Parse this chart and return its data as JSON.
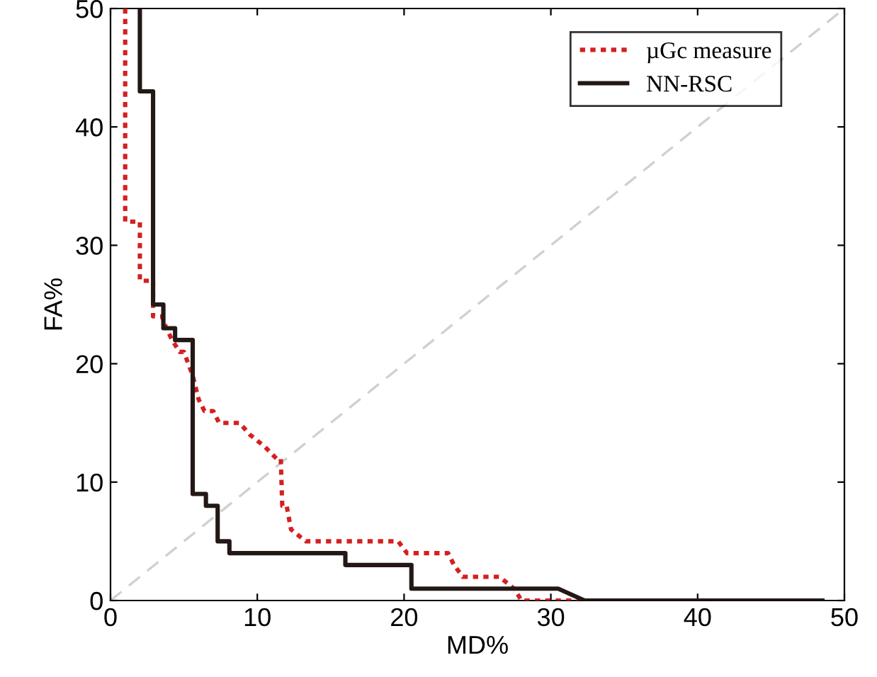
{
  "chart_data": {
    "type": "line",
    "xlabel": "MD%",
    "ylabel": "FA%",
    "xlim": [
      0,
      50
    ],
    "ylim": [
      0,
      50
    ],
    "xticks": [
      0,
      10,
      20,
      30,
      40,
      50
    ],
    "yticks": [
      0,
      10,
      20,
      30,
      40,
      50
    ],
    "grid": false,
    "legend": "top right",
    "marker": "none",
    "series": [
      {
        "name": "µGc measure",
        "color": "#d42020",
        "line_style": "dotted",
        "x": [
          1.0,
          1.0,
          2.0,
          2.0,
          2.9,
          2.9,
          3.5,
          3.8,
          4.2,
          4.7,
          5.0,
          5.6,
          6.0,
          6.4,
          7.0,
          7.4,
          7.5,
          8.8,
          9.5,
          10.5,
          11.3,
          11.6,
          11.7,
          12.0,
          12.3,
          13.3,
          19.6,
          20.2,
          23.0,
          23.4,
          24.0,
          26.5,
          27.0,
          27.5,
          28.0,
          32.0
        ],
        "values": [
          50,
          32,
          32,
          27,
          27,
          24,
          24,
          23,
          22,
          21,
          21,
          19,
          17,
          16,
          16,
          15,
          15,
          15,
          14,
          13,
          12,
          12,
          8,
          8,
          6,
          5,
          5,
          4,
          4,
          3,
          2,
          2,
          1.5,
          1,
          0,
          0
        ]
      },
      {
        "name": "NN-RSC",
        "color": "#231815",
        "line_style": "solid",
        "x": [
          2.0,
          2.0,
          2.9,
          2.9,
          3.6,
          3.6,
          4.4,
          4.4,
          5.6,
          5.6,
          6.5,
          6.5,
          7.3,
          7.3,
          8.1,
          8.1,
          16.0,
          16.0,
          20.5,
          20.5,
          30.5,
          32.3,
          48.5
        ],
        "values": [
          50,
          43,
          43,
          25,
          25,
          23,
          23,
          22,
          22,
          9,
          9,
          8,
          8,
          5,
          5,
          4,
          4,
          3,
          3,
          1,
          1,
          0,
          0
        ]
      },
      {
        "color": "#d0d0d0",
        "line_style": "dashed",
        "x": [
          0,
          50
        ],
        "values": [
          0,
          50
        ]
      }
    ]
  }
}
